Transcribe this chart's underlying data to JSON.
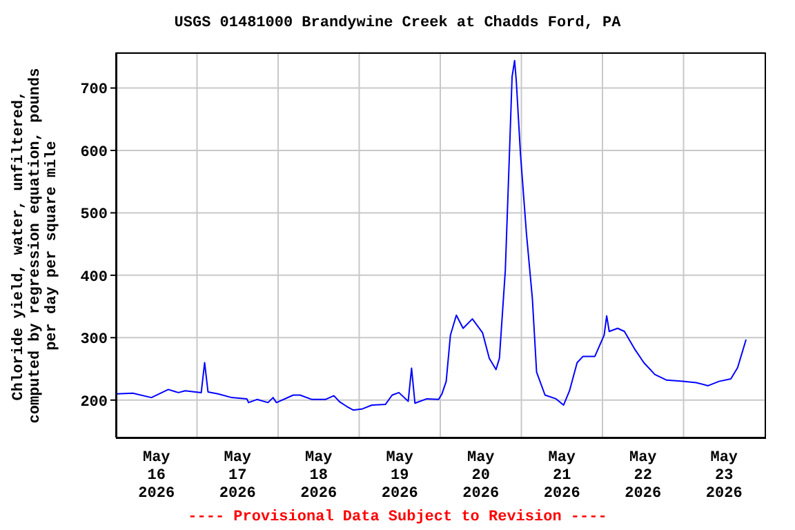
{
  "chart_data": {
    "type": "line",
    "title": "USGS 01481000 Brandywine Creek at Chadds Ford, PA",
    "ylabel": "Chloride yield, water, unfiltered, computed by regression equation, pounds per day per square mile",
    "annotations": [
      "---- Provisional Data Subject to Revision ----"
    ],
    "x": [
      "2026-05-16T00:15",
      "2026-05-16T05:00",
      "2026-05-16T10:30",
      "2026-05-16T15:30",
      "2026-05-16T18:30",
      "2026-05-16T20:30",
      "2026-05-17T01:15",
      "2026-05-17T02:15",
      "2026-05-17T03:15",
      "2026-05-17T06:15",
      "2026-05-17T10:15",
      "2026-05-17T14:45",
      "2026-05-17T15:15",
      "2026-05-17T17:45",
      "2026-05-17T21:00",
      "2026-05-17T22:30",
      "2026-05-17T23:30",
      "2026-05-18T04:30",
      "2026-05-18T06:30",
      "2026-05-18T10:00",
      "2026-05-18T14:00",
      "2026-05-18T16:30",
      "2026-05-18T18:15",
      "2026-05-18T20:15",
      "2026-05-18T22:15",
      "2026-05-19T01:00",
      "2026-05-19T03:45",
      "2026-05-19T07:45",
      "2026-05-19T09:45",
      "2026-05-19T11:45",
      "2026-05-19T14:30",
      "2026-05-19T15:30",
      "2026-05-19T16:30",
      "2026-05-19T20:00",
      "2026-05-19T23:30",
      "2026-05-20T00:30",
      "2026-05-20T01:45",
      "2026-05-20T03:00",
      "2026-05-20T04:45",
      "2026-05-20T06:45",
      "2026-05-20T09:30",
      "2026-05-20T12:30",
      "2026-05-20T14:30",
      "2026-05-20T16:30",
      "2026-05-20T17:30",
      "2026-05-20T19:15",
      "2026-05-20T20:30",
      "2026-05-20T21:15",
      "2026-05-20T22:00",
      "2026-05-20T22:30",
      "2026-05-20T23:45",
      "2026-05-21T01:30",
      "2026-05-21T03:15",
      "2026-05-21T04:30",
      "2026-05-21T07:00",
      "2026-05-21T10:15",
      "2026-05-21T12:30",
      "2026-05-21T14:15",
      "2026-05-21T16:30",
      "2026-05-21T18:15",
      "2026-05-21T21:45",
      "2026-05-22T00:30",
      "2026-05-22T01:15",
      "2026-05-22T02:00",
      "2026-05-22T04:30",
      "2026-05-22T06:30",
      "2026-05-22T09:30",
      "2026-05-22T12:15",
      "2026-05-22T15:30",
      "2026-05-22T19:00",
      "2026-05-22T23:45",
      "2026-05-23T03:45",
      "2026-05-23T07:15",
      "2026-05-23T10:30",
      "2026-05-23T14:00",
      "2026-05-23T16:00",
      "2026-05-23T18:30"
    ],
    "series": [
      {
        "color": "#0000ff",
        "values": [
          210,
          211,
          204,
          217,
          212,
          215,
          212,
          260,
          213,
          210,
          204,
          202,
          196,
          201,
          196,
          204,
          196,
          208,
          208,
          201,
          201,
          207,
          197,
          190,
          184,
          186,
          192,
          193,
          208,
          212,
          198,
          251,
          195,
          202,
          201,
          210,
          230,
          304,
          336,
          315,
          330,
          308,
          267,
          249,
          267,
          408,
          600,
          718,
          744,
          711,
          593,
          467,
          363,
          245,
          208,
          202,
          192,
          215,
          260,
          270,
          270,
          304,
          335,
          310,
          315,
          310,
          282,
          260,
          241,
          232,
          230,
          228,
          223,
          230,
          234,
          252,
          297
        ]
      }
    ],
    "xlim": [
      "2026-05-16T00:00",
      "2026-05-24T00:00"
    ],
    "xticks": [
      {
        "value": "2026-05-16T12:00",
        "label": "May 16 2026"
      },
      {
        "value": "2026-05-17T00:00",
        "label": null
      },
      {
        "value": "2026-05-17T12:00",
        "label": "May 17 2026"
      },
      {
        "value": "2026-05-18T00:00",
        "label": null
      },
      {
        "value": "2026-05-18T12:00",
        "label": "May 18 2026"
      },
      {
        "value": "2026-05-19T00:00",
        "label": null
      },
      {
        "value": "2026-05-19T12:00",
        "label": "May 19 2026"
      },
      {
        "value": "2026-05-20T00:00",
        "label": null
      },
      {
        "value": "2026-05-20T12:00",
        "label": "May 20 2026"
      },
      {
        "value": "2026-05-21T00:00",
        "label": null
      },
      {
        "value": "2026-05-21T12:00",
        "label": "May 21 2026"
      },
      {
        "value": "2026-05-22T00:00",
        "label": null
      },
      {
        "value": "2026-05-22T12:00",
        "label": "May 22 2026"
      },
      {
        "value": "2026-05-23T00:00",
        "label": null
      },
      {
        "value": "2026-05-23T12:00",
        "label": "May 23 2026"
      }
    ],
    "ylim": [
      140,
      757
    ],
    "yticks": [
      200,
      300,
      400,
      500,
      600,
      700
    ],
    "grid": true,
    "marker": "none",
    "line_style": "solid"
  }
}
